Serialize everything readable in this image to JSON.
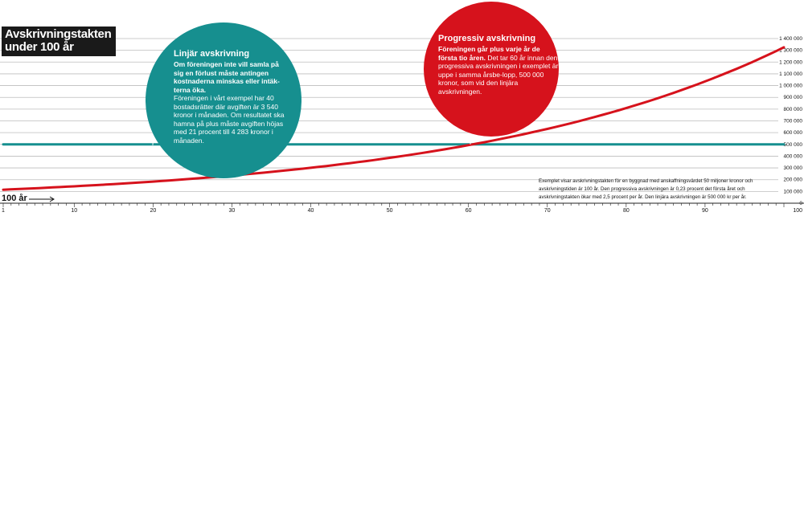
{
  "title": {
    "line1": "Avskrivningstakten",
    "line2": "under 100 år"
  },
  "colors": {
    "linear": "#168f8f",
    "progressive": "#d6121c",
    "grid": "#bdbdbd",
    "title_bg": "#1a1a1a"
  },
  "bubble_linear": {
    "title": "Linjär avskrivning",
    "lead": "Om föreningen inte vill samla på sig en förlust måste antingen kostnaderna minskas eller intäk-terna öka.",
    "body": "Föreningen i vårt exempel har 40 bostadsrätter där avgiften är 3 540 kronor i månaden. Om resultatet ska hamna på plus måste avgiften höjas med 21 procent till 4 283 kronor i månaden."
  },
  "bubble_progressive": {
    "title": "Progressiv avskrivning",
    "lead": "Föreningen går plus varje år de första tio åren.",
    "body": "Det tar 60 år innan den progressiva avskrivningen i exemplet är uppe i samma årsbe-lopp, 500 000 kronor, som vid den linjära avskrivningen."
  },
  "footnote": "Exemplet visar avskrivningstakten för en byggnad med anskaffningsvärdet 50 miljoner kronor och avskrivningstiden är 100 år. Den progressiva avskrivningen är 0,23 procent det första året och avskrivningstakten ökar med 2,5 procent per år. Den linjära avskrivningen är 500 000 kr per år.",
  "hundred_label": "100 år",
  "chart_data": {
    "type": "line",
    "title": "Avskrivningstakten under 100 år",
    "xlim": [
      1,
      100
    ],
    "ylim": [
      0,
      1400000
    ],
    "x_ticks": [
      "1",
      "10",
      "20",
      "30",
      "40",
      "50",
      "60",
      "70",
      "80",
      "90",
      "100"
    ],
    "y_ticks": [
      "0",
      "100 000",
      "200 000",
      "300 000",
      "400 000",
      "500 000",
      "600 000",
      "700 000",
      "800 000",
      "900 000",
      "1 000 000",
      "1 100 000",
      "1 200 000",
      "1 300 000",
      "1 400 000"
    ],
    "grid": true,
    "series": [
      {
        "key": "linear",
        "values_x": [
          1,
          100
        ],
        "values_y": [
          500000,
          500000
        ]
      },
      {
        "key": "progressive",
        "values_x": [
          1,
          10,
          20,
          30,
          40,
          50,
          60,
          70,
          80,
          90,
          100
        ],
        "values_y": [
          115000,
          143600,
          183800,
          235300,
          301200,
          385600,
          493600,
          631800,
          808800,
          1035300,
          1325300
        ]
      }
    ]
  }
}
